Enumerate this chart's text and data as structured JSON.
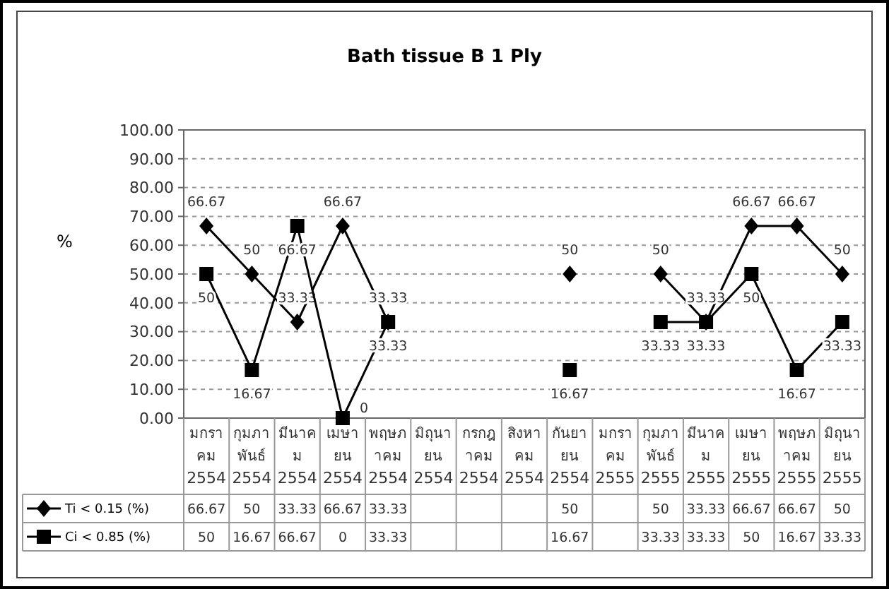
{
  "chart_data": {
    "type": "line",
    "title": "Bath tissue B 1 Ply",
    "ylabel": "%",
    "categories": [
      "มกราคม 2554",
      "กุมภาพันธ์ 2554",
      "มีนาคม 2554",
      "เมษายน 2554",
      "พฤษภาคม 2554",
      "มิถุนายน 2554",
      "กรกฎาคม 2554",
      "สิงหาคม 2554",
      "กันยายน 2554",
      "มกราคม 2555",
      "กุมภาพันธ์ 2555",
      "มีนาคม 2555",
      "เมษายน 2555",
      "พฤษภาคม 2555",
      "มิถุนายน 2555"
    ],
    "series": [
      {
        "name": "Ti < 0.15 (%)",
        "color": "#000000",
        "marker": "diamond",
        "values": [
          66.67,
          50,
          33.33,
          66.67,
          33.33,
          null,
          null,
          null,
          50,
          null,
          50,
          33.33,
          66.67,
          66.67,
          50
        ],
        "value_labels": [
          "66.67",
          "50",
          "33.33",
          "66.67",
          "33.33",
          null,
          null,
          null,
          "50",
          null,
          "50",
          "33.33",
          "66.67",
          "66.67",
          "50"
        ]
      },
      {
        "name": "Ci < 0.85 (%)",
        "color": "#000000",
        "marker": "square",
        "values": [
          50,
          16.67,
          66.67,
          0,
          33.33,
          null,
          null,
          null,
          16.67,
          null,
          33.33,
          33.33,
          50,
          16.67,
          33.33
        ],
        "value_labels": [
          "50",
          "16.67",
          "66.67",
          "0",
          "33.33",
          null,
          null,
          null,
          "16.67",
          null,
          "33.33",
          "33.33",
          "50",
          "16.67",
          "33.33"
        ]
      }
    ],
    "ylim": [
      0,
      100
    ],
    "yticks": [
      {
        "value": 0,
        "label": "0.00"
      },
      {
        "value": 10,
        "label": "10.00"
      },
      {
        "value": 20,
        "label": "20.00"
      },
      {
        "value": 30,
        "label": "30.00"
      },
      {
        "value": 40,
        "label": "40.00"
      },
      {
        "value": 50,
        "label": "50.00"
      },
      {
        "value": 60,
        "label": "60.00"
      },
      {
        "value": 70,
        "label": "70.00"
      },
      {
        "value": 80,
        "label": "80.00"
      },
      {
        "value": 90,
        "label": "90.00"
      },
      {
        "value": 100,
        "label": "100.00"
      }
    ],
    "grid": "y",
    "line_style": "solid",
    "data_labels": true,
    "legend": "bottom"
  }
}
